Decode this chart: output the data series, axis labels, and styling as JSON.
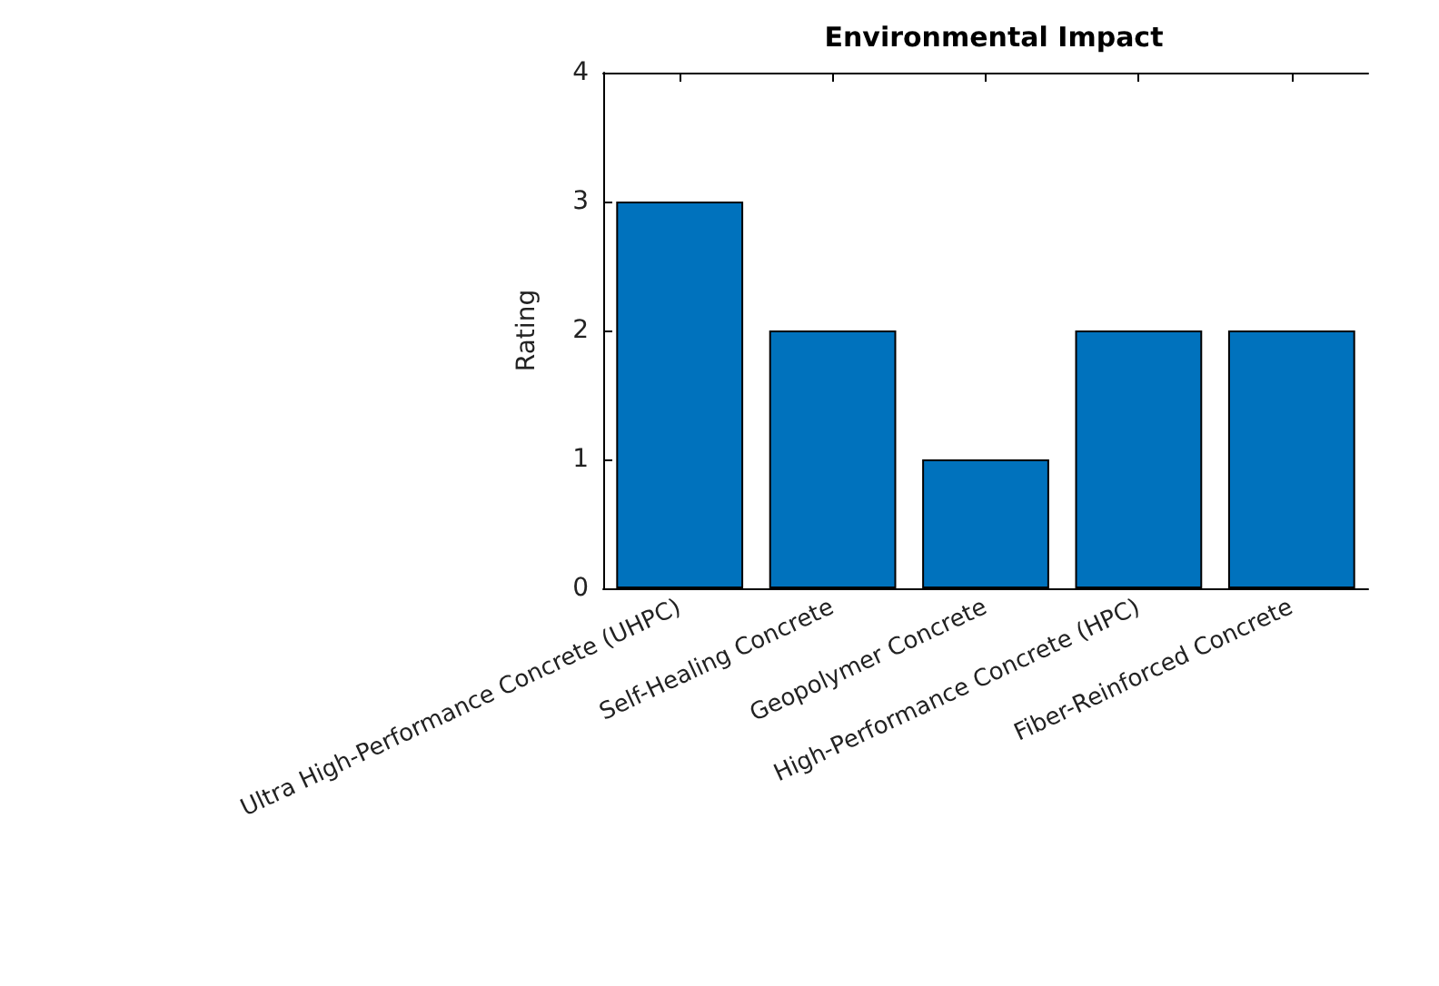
{
  "chart_data": {
    "type": "bar",
    "title": "Environmental Impact",
    "ylabel": "Rating",
    "categories": [
      "Ultra High-Performance Concrete (UHPC)",
      "Self-Healing Concrete",
      "Geopolymer Concrete",
      "High-Performance Concrete (HPC)",
      "Fiber-Reinforced Concrete"
    ],
    "values": [
      3,
      2,
      1,
      2,
      2
    ],
    "color": "#0072bd",
    "ylim": [
      0,
      4
    ],
    "yticks": [
      0,
      1,
      2,
      3,
      4
    ],
    "grid": false
  }
}
